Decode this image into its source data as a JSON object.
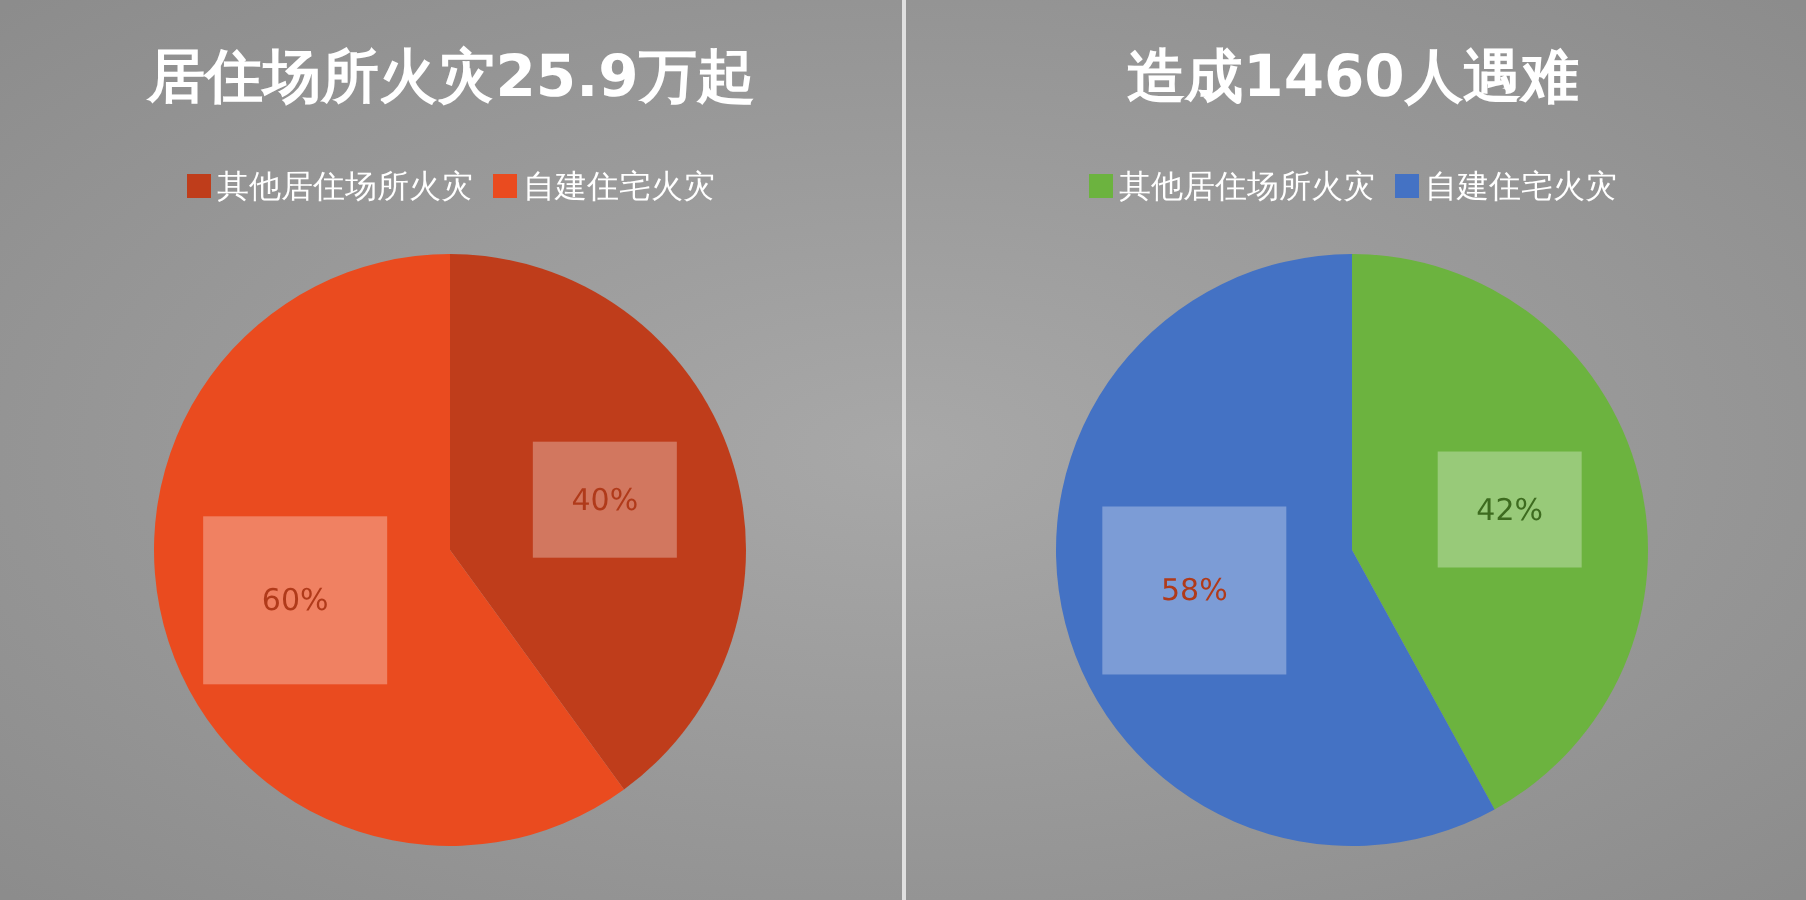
{
  "chart_data": [
    {
      "type": "pie",
      "title": "居住场所火灾25.9万起",
      "categories": [
        "其他居住场所火灾",
        "自建住宅火灾"
      ],
      "values": [
        40,
        60
      ],
      "colors": [
        "#bf3d1b",
        "#ea4b1f"
      ],
      "legend": "top",
      "data_labels": true,
      "value_labels": [
        "40%",
        "60%"
      ]
    },
    {
      "type": "pie",
      "title": "造成1460人遇难",
      "categories": [
        "其他居住场所火灾",
        "自建住宅火灾"
      ],
      "values": [
        42,
        58
      ],
      "colors": [
        "#6cb33f",
        "#4472c4"
      ],
      "legend": "top",
      "data_labels": true,
      "value_labels": [
        "42%",
        "58%"
      ]
    }
  ]
}
